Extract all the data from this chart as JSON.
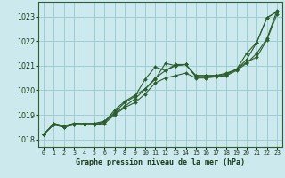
{
  "title": "Graphe pression niveau de la mer (hPa)",
  "bg_color": "#cce9ed",
  "grid_color": "#9fcdd4",
  "line_color": "#2d5e2d",
  "text_color": "#1a3a1a",
  "xlim": [
    -0.5,
    23.5
  ],
  "ylim": [
    1017.7,
    1023.6
  ],
  "yticks": [
    1018,
    1019,
    1020,
    1021,
    1022,
    1023
  ],
  "xticks": [
    0,
    1,
    2,
    3,
    4,
    5,
    6,
    7,
    8,
    9,
    10,
    11,
    12,
    13,
    14,
    15,
    16,
    17,
    18,
    19,
    20,
    21,
    22,
    23
  ],
  "series": [
    [
      1018.2,
      1018.65,
      1018.55,
      1018.65,
      1018.65,
      1018.65,
      1018.7,
      1019.05,
      1019.35,
      1019.65,
      1020.05,
      1020.45,
      1021.1,
      1021.0,
      1021.05,
      1020.6,
      1020.6,
      1020.6,
      1020.65,
      1020.85,
      1021.25,
      1021.95,
      1022.95,
      1023.2
    ],
    [
      1018.2,
      1018.65,
      1018.55,
      1018.65,
      1018.65,
      1018.65,
      1018.75,
      1019.1,
      1019.5,
      1019.75,
      1020.45,
      1020.95,
      1020.8,
      1021.0,
      1021.05,
      1020.55,
      1020.55,
      1020.6,
      1020.7,
      1020.85,
      1021.5,
      1021.95,
      1022.95,
      1023.2
    ],
    [
      1018.2,
      1018.6,
      1018.5,
      1018.6,
      1018.6,
      1018.6,
      1018.7,
      1019.2,
      1019.55,
      1019.8,
      1020.05,
      1020.5,
      1020.8,
      1021.05,
      1021.05,
      1020.6,
      1020.6,
      1020.6,
      1020.65,
      1020.85,
      1021.15,
      1021.35,
      1022.05,
      1023.1
    ],
    [
      1018.2,
      1018.6,
      1018.5,
      1018.6,
      1018.6,
      1018.6,
      1018.65,
      1019.0,
      1019.3,
      1019.5,
      1019.85,
      1020.3,
      1020.5,
      1020.6,
      1020.7,
      1020.5,
      1020.5,
      1020.55,
      1020.6,
      1020.8,
      1021.1,
      1021.5,
      1022.1,
      1023.25
    ]
  ]
}
